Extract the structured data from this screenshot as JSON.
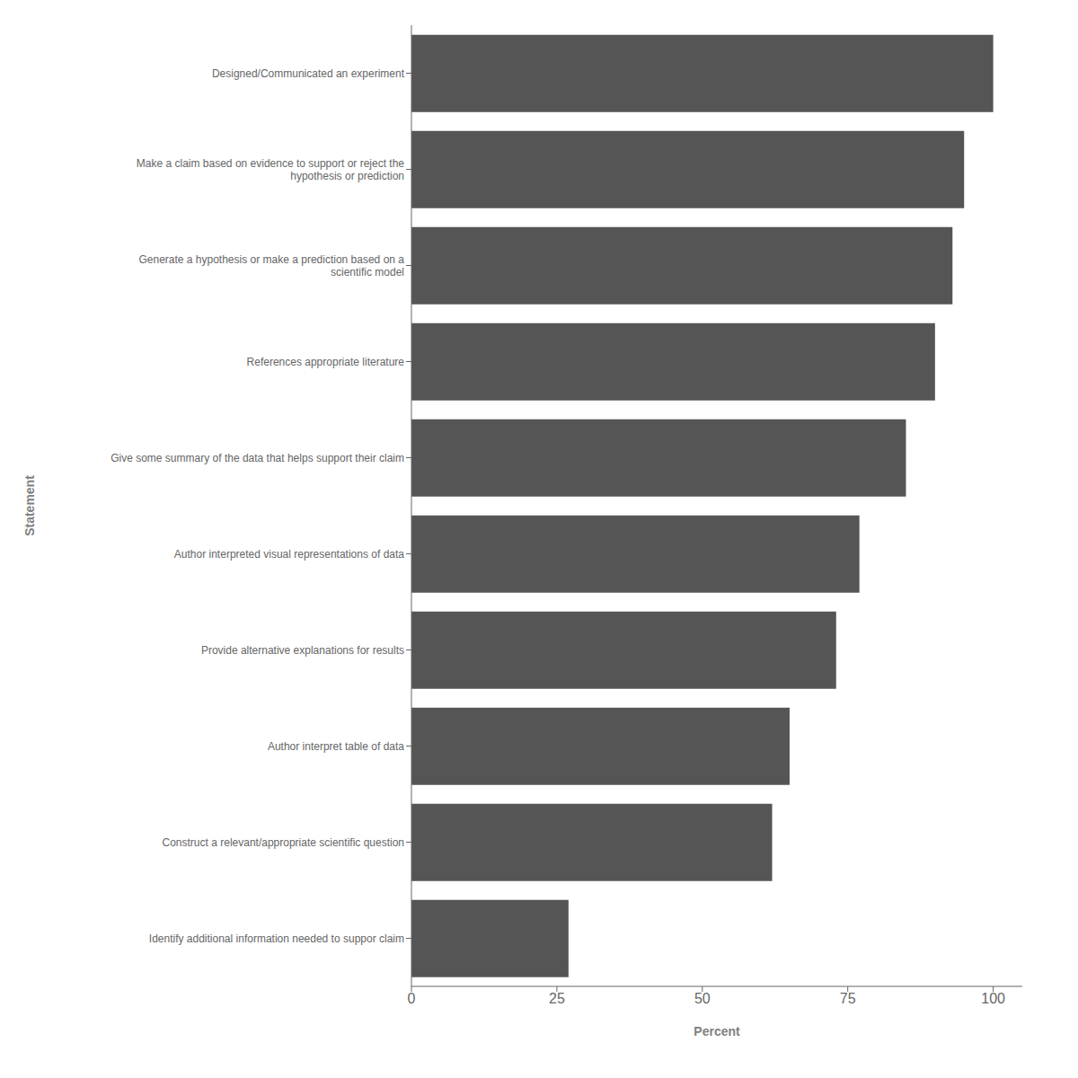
{
  "chart_data": {
    "type": "bar",
    "orientation": "horizontal",
    "categories": [
      "Designed/Communicated an experiment",
      "Make a claim based on evidence to support or reject the\nhypothesis or prediction",
      "Generate a hypothesis or make a prediction based on a\nscientific model",
      "References appropriate literature",
      "Give some summary of the data that helps support their claim",
      "Author interpreted visual representations of data",
      "Provide alternative explanations for results",
      "Author interpret table of data",
      "Construct a relevant/appropriate scientific question",
      "Identify additional information needed to suppor claim"
    ],
    "values": [
      100,
      95,
      93,
      90,
      85,
      77,
      73,
      65,
      62,
      27
    ],
    "color": "#555555",
    "xlabel": "Percent",
    "ylabel": "Statement",
    "xlim": [
      0,
      105
    ],
    "xticks": [
      0,
      25,
      50,
      75,
      100
    ],
    "grid": false
  }
}
